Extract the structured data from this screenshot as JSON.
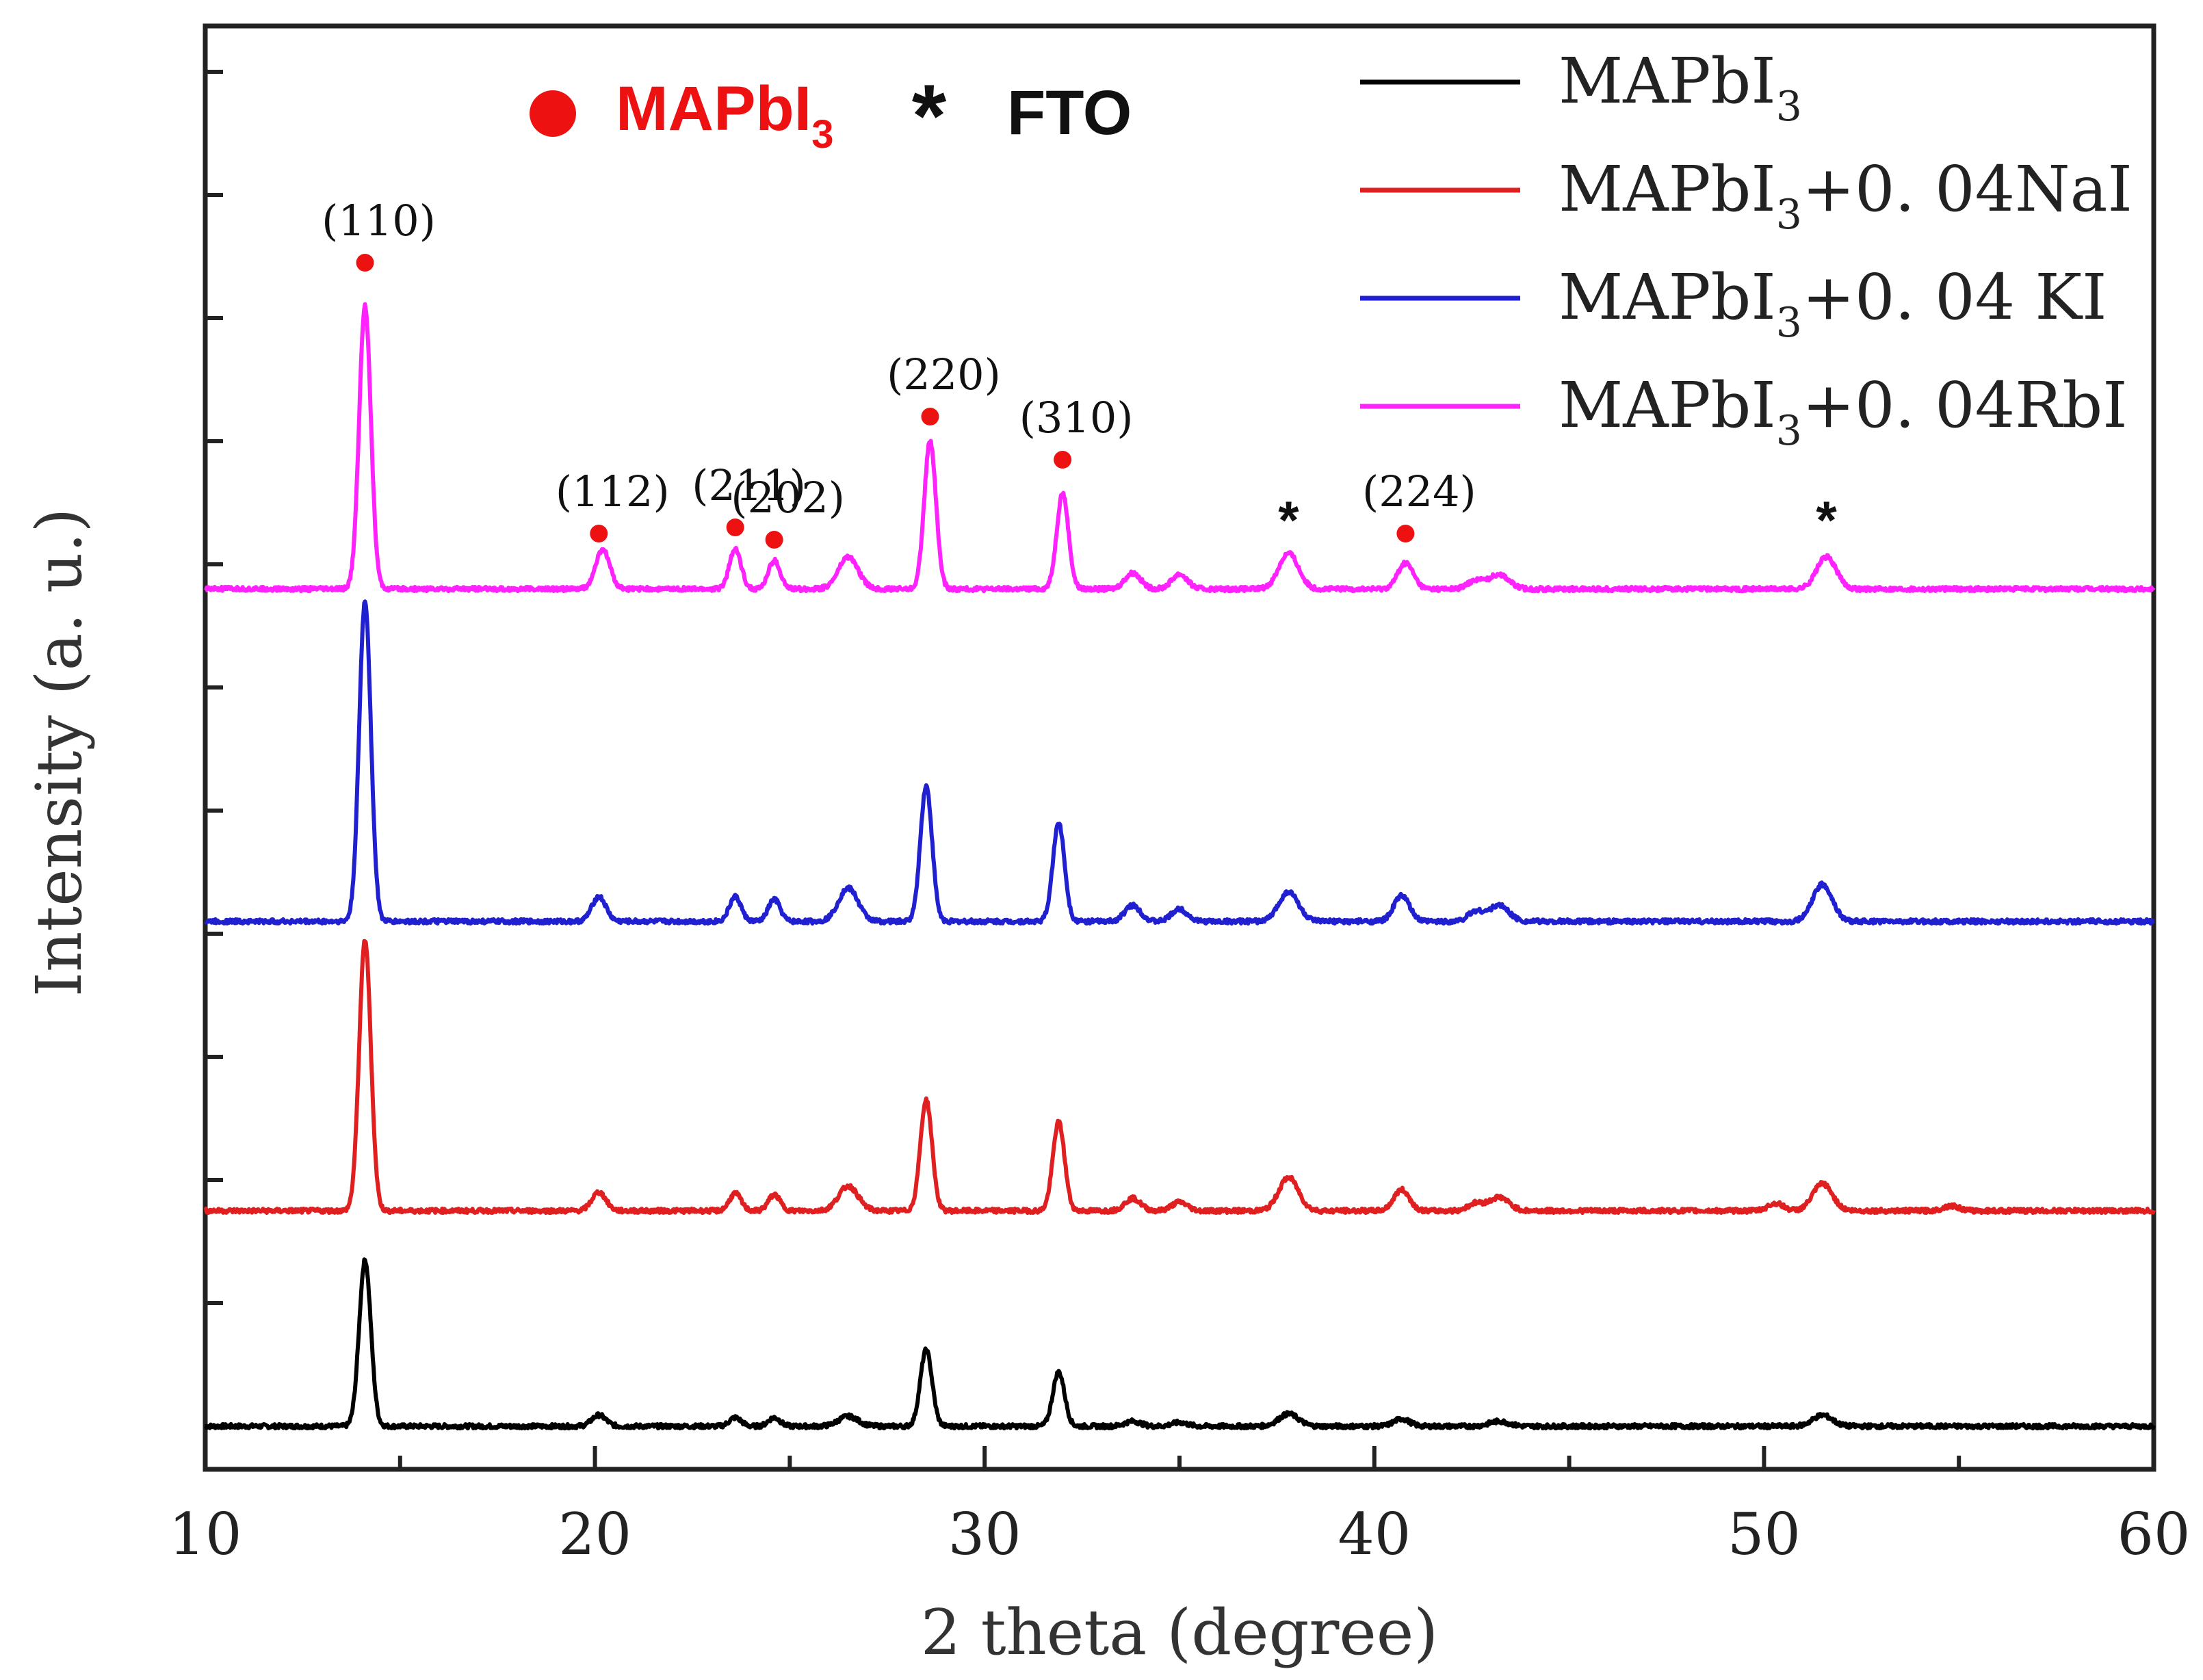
{
  "chart_data": {
    "type": "line",
    "title": "",
    "xlabel": "2 theta (degree)",
    "ylabel": "Intensity (a. u.)",
    "xlim": [
      10,
      60
    ],
    "ylim": [
      0,
      12
    ],
    "xticks": [
      10,
      20,
      30,
      40,
      50,
      60
    ],
    "grid": false,
    "legend_position": "top-right",
    "colors": {
      "MAPbI3": "#000000",
      "NaI": "#e02020",
      "KI": "#2020d0",
      "RbI": "#ff22ff",
      "marker": "#ee1111",
      "frame": "#222222"
    },
    "phase_key": {
      "mapbi3": {
        "base": "MAPbI",
        "sub": "3",
        "color": "#ee1111"
      },
      "fto": {
        "symbol": "*",
        "label": "FTO"
      }
    },
    "series": [
      {
        "name": "MAPbI3",
        "legend": {
          "base": "MAPbI",
          "sub": "3",
          "suffix": ""
        },
        "color": "#000000",
        "baseline": 0.0,
        "peaks": [
          [
            14.1,
            1.35,
            0.15
          ],
          [
            20.1,
            0.09,
            0.18
          ],
          [
            23.6,
            0.07,
            0.15
          ],
          [
            24.6,
            0.07,
            0.15
          ],
          [
            26.5,
            0.08,
            0.25
          ],
          [
            28.5,
            0.62,
            0.15
          ],
          [
            31.9,
            0.44,
            0.15
          ],
          [
            33.8,
            0.04,
            0.2
          ],
          [
            35.0,
            0.03,
            0.2
          ],
          [
            37.8,
            0.1,
            0.25
          ],
          [
            40.7,
            0.06,
            0.2
          ],
          [
            43.2,
            0.04,
            0.25
          ],
          [
            51.5,
            0.09,
            0.25
          ]
        ]
      },
      {
        "name": "MAPbI3+0.04NaI",
        "legend": {
          "base": "MAPbI",
          "sub": "3",
          "suffix": "+0. 04NaI"
        },
        "color": "#e02020",
        "baseline": 1.75,
        "peaks": [
          [
            14.1,
            2.2,
            0.15
          ],
          [
            20.1,
            0.15,
            0.18
          ],
          [
            23.6,
            0.14,
            0.15
          ],
          [
            24.6,
            0.13,
            0.15
          ],
          [
            26.5,
            0.2,
            0.25
          ],
          [
            28.5,
            0.9,
            0.15
          ],
          [
            31.9,
            0.72,
            0.15
          ],
          [
            33.8,
            0.1,
            0.2
          ],
          [
            35.0,
            0.07,
            0.2
          ],
          [
            37.8,
            0.27,
            0.25
          ],
          [
            40.7,
            0.17,
            0.2
          ],
          [
            42.6,
            0.06,
            0.2
          ],
          [
            43.2,
            0.11,
            0.25
          ],
          [
            50.3,
            0.06,
            0.2
          ],
          [
            51.5,
            0.22,
            0.25
          ],
          [
            54.8,
            0.04,
            0.2
          ]
        ]
      },
      {
        "name": "MAPbI3+0.04 KI",
        "legend": {
          "base": "MAPbI",
          "sub": "3",
          "suffix": "+0. 04 KI"
        },
        "color": "#2020d0",
        "baseline": 4.1,
        "peaks": [
          [
            14.1,
            2.6,
            0.15
          ],
          [
            20.1,
            0.2,
            0.18
          ],
          [
            23.6,
            0.2,
            0.15
          ],
          [
            24.6,
            0.18,
            0.15
          ],
          [
            26.5,
            0.27,
            0.25
          ],
          [
            28.5,
            1.1,
            0.15
          ],
          [
            31.9,
            0.8,
            0.15
          ],
          [
            33.8,
            0.13,
            0.2
          ],
          [
            35.0,
            0.1,
            0.2
          ],
          [
            37.8,
            0.24,
            0.25
          ],
          [
            40.7,
            0.21,
            0.2
          ],
          [
            42.6,
            0.08,
            0.2
          ],
          [
            43.2,
            0.13,
            0.25
          ],
          [
            51.5,
            0.3,
            0.25
          ]
        ]
      },
      {
        "name": "MAPbI3+0.04RbI",
        "legend": {
          "base": "MAPbI",
          "sub": "3",
          "suffix": "+0. 04RbI"
        },
        "color": "#ff22ff",
        "baseline": 6.8,
        "peaks": [
          [
            14.1,
            2.3,
            0.15
          ],
          [
            20.2,
            0.32,
            0.18
          ],
          [
            23.6,
            0.32,
            0.15
          ],
          [
            24.6,
            0.23,
            0.15
          ],
          [
            26.5,
            0.26,
            0.25
          ],
          [
            28.6,
            1.2,
            0.15
          ],
          [
            32.0,
            0.78,
            0.15
          ],
          [
            33.8,
            0.13,
            0.2
          ],
          [
            35.0,
            0.12,
            0.2
          ],
          [
            37.8,
            0.29,
            0.25
          ],
          [
            40.8,
            0.21,
            0.2
          ],
          [
            42.6,
            0.07,
            0.2
          ],
          [
            43.2,
            0.12,
            0.25
          ],
          [
            51.6,
            0.26,
            0.25
          ]
        ]
      }
    ],
    "annotations": [
      {
        "label": "(110)",
        "x": 14.1,
        "y": 9.45,
        "marker": "dot"
      },
      {
        "label": "(112)",
        "x": 20.1,
        "y": 7.25,
        "marker": "dot"
      },
      {
        "label": "(211)",
        "x": 23.6,
        "y": 7.3,
        "marker": "dot"
      },
      {
        "label": "(202)",
        "x": 24.6,
        "y": 7.2,
        "marker": "dot"
      },
      {
        "label": "(220)",
        "x": 28.6,
        "y": 8.2,
        "marker": "dot"
      },
      {
        "label": "(310)",
        "x": 32.0,
        "y": 7.85,
        "marker": "dot"
      },
      {
        "label": "",
        "x": 37.8,
        "y": 7.4,
        "marker": "star"
      },
      {
        "label": "(224)",
        "x": 40.8,
        "y": 7.25,
        "marker": "dot"
      },
      {
        "label": "",
        "x": 51.6,
        "y": 7.4,
        "marker": "star"
      }
    ]
  }
}
